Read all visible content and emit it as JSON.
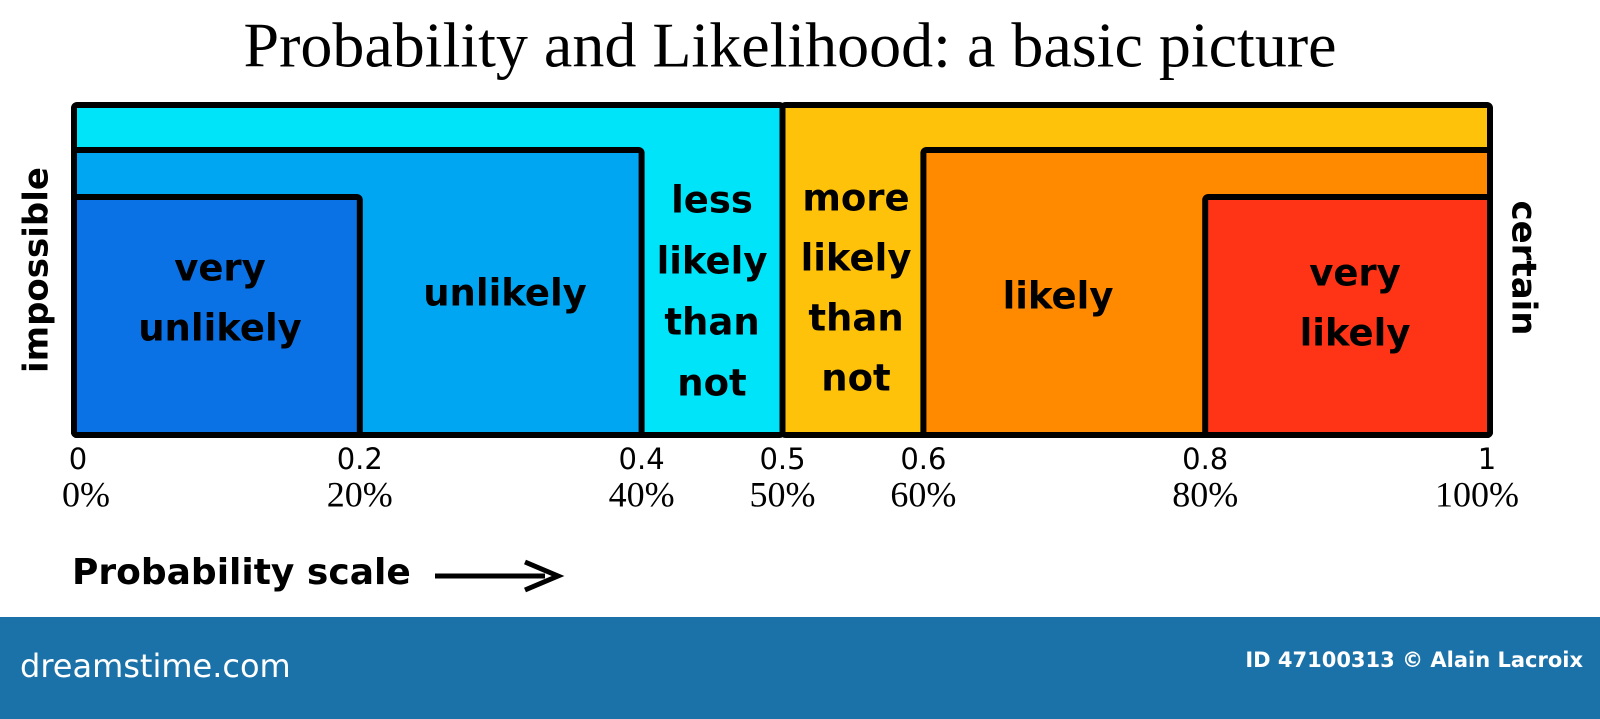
{
  "title": "Probability and Likelihood: a basic picture",
  "side_labels": {
    "left": "impossible",
    "right": "certain"
  },
  "regions": [
    {
      "lines": [
        "very",
        "unlikely"
      ]
    },
    {
      "lines": [
        "unlikely"
      ]
    },
    {
      "lines": [
        "less",
        "likely",
        "than",
        "not"
      ]
    },
    {
      "lines": [
        "more",
        "likely",
        "than",
        "not"
      ]
    },
    {
      "lines": [
        "likely"
      ]
    },
    {
      "lines": [
        "very",
        "likely"
      ]
    }
  ],
  "scale": {
    "ticks": [
      {
        "value": 0,
        "percent": "0%"
      },
      {
        "value": 0.2,
        "percent": "20%"
      },
      {
        "value": 0.4,
        "percent": "40%"
      },
      {
        "value": 0.5,
        "percent": "50%"
      },
      {
        "value": 0.6,
        "percent": "60%"
      },
      {
        "value": 0.8,
        "percent": "80%"
      },
      {
        "value": 1,
        "percent": "100%"
      }
    ],
    "caption": "Probability scale"
  },
  "footer": {
    "site": "dreamstime.com",
    "credit": "ID 47100313 © Alain Lacroix"
  }
}
